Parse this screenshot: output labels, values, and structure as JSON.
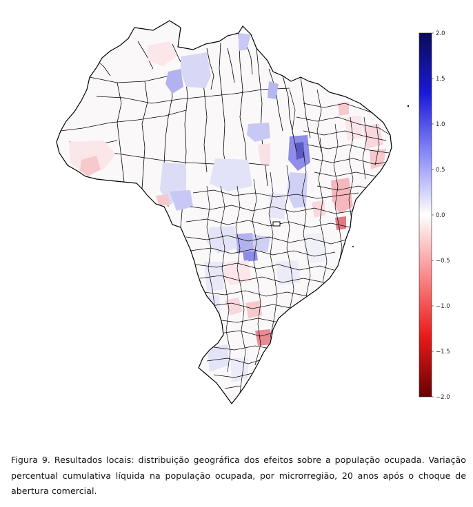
{
  "figure": {
    "caption_prefix": "Figura 9.",
    "caption_text": "Resultados locais: distribuição geográfica dos efeitos sobre a população ocupada. Variação percentual cumulativa líquida na população ocupada, por microrregião, 20 anos após o choque de abertura comercial."
  },
  "colorbar": {
    "min": -2.0,
    "max": 2.0,
    "ticks": [
      "2.0",
      "1.5",
      "1.0",
      "0.5",
      "0.0",
      "−0.5",
      "−1.0",
      "−1.5",
      "−2.0"
    ],
    "colors": [
      "#0a0a5a",
      "#1a1ad8",
      "#8a8afa",
      "#ffffff",
      "#fa8a8a",
      "#e81a1a",
      "#6a0000"
    ]
  },
  "map": {
    "country": "Brasil",
    "unit": "microrregião"
  }
}
